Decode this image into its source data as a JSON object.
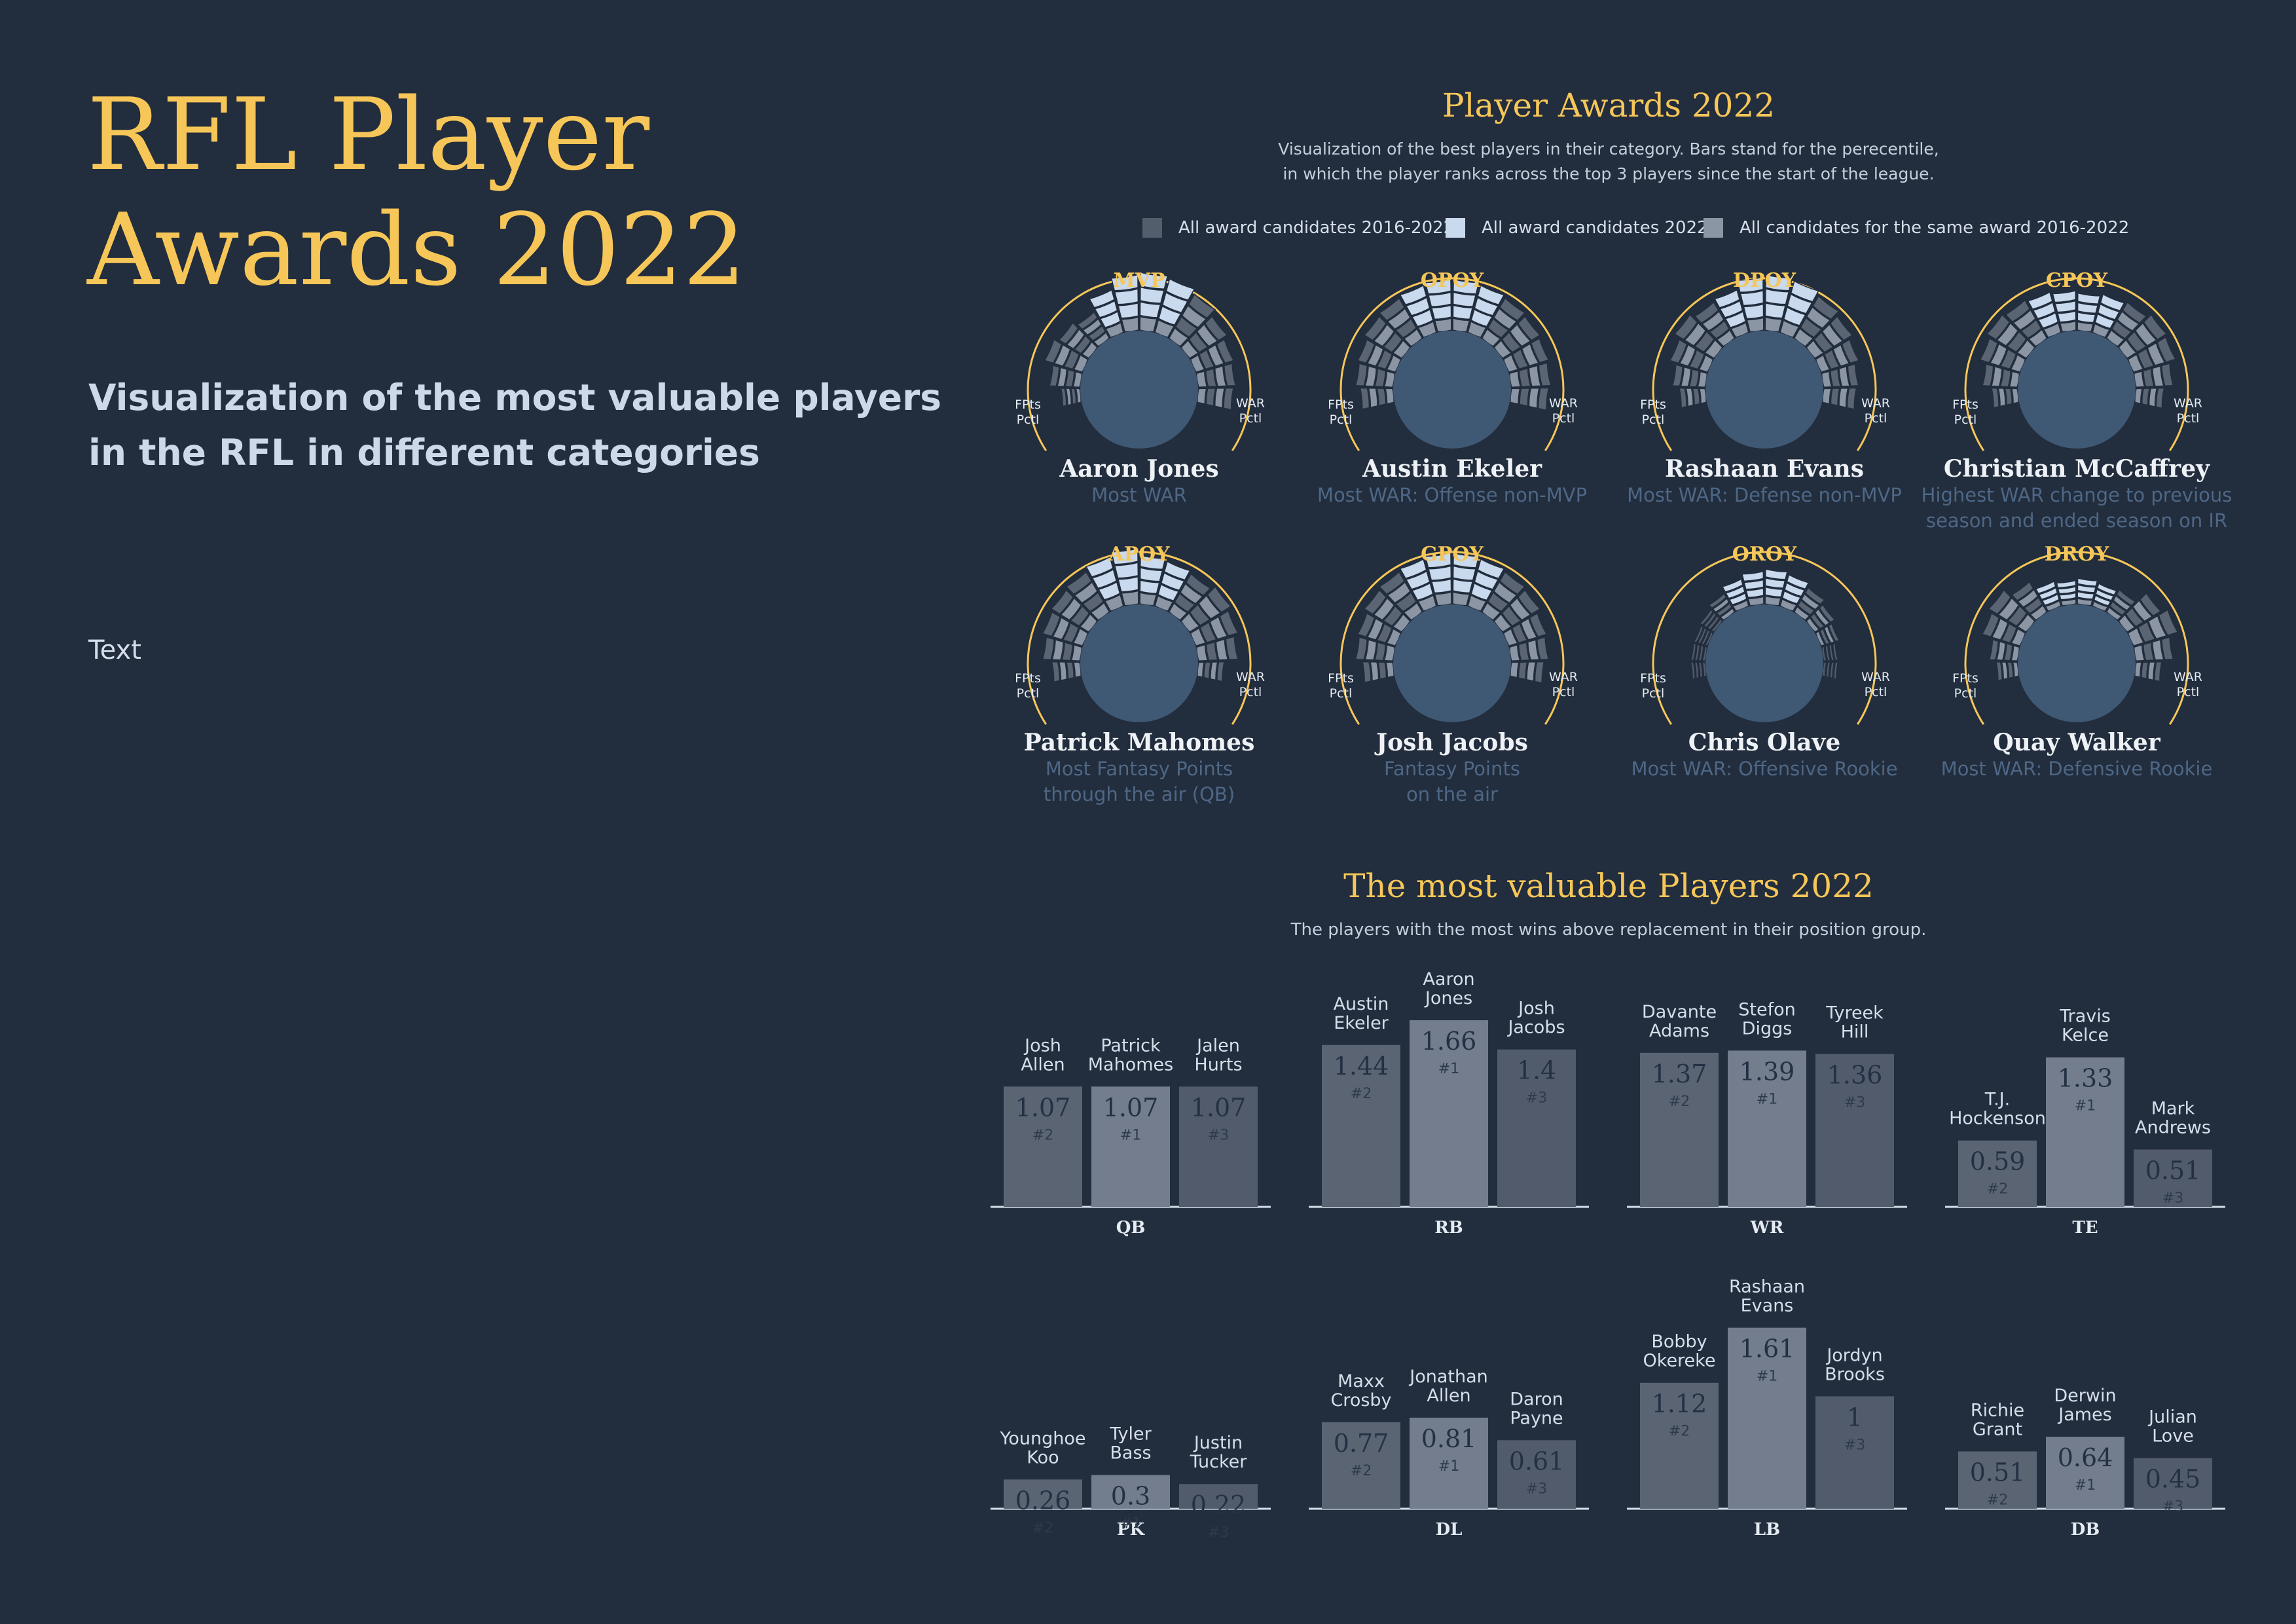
{
  "page": {
    "title": "RFL Player Awards 2022",
    "subtitle": "Visualization of the most valuable players in the RFL in different categories",
    "text": "Text"
  },
  "colors": {
    "background": "#222d3d",
    "gold": "#f6c758",
    "circle": "#3f5874",
    "bar_dark": "#5a6473",
    "bar_light": "#737d8d",
    "bar_dim": "#525b6b",
    "legend_dark": "#535d6c",
    "legend_light": "#c9d9ee",
    "legend_mid": "#8c95a3",
    "muted_text": "#4e6785"
  },
  "awards_section": {
    "title": "Player Awards 2022",
    "description": [
      "Visualization of the best players in their category. Bars stand for the perecentile,",
      "in which the player ranks across the top 3 players since the start of the league."
    ],
    "legend": [
      {
        "label": "All award candidates 2016-2022",
        "color": "#535d6c"
      },
      {
        "label": "All award candidates 2022",
        "color": "#c9d9ee"
      },
      {
        "label": "All candidates for the same award 2016-2022",
        "color": "#8c95a3"
      }
    ],
    "axis_left": [
      "FPts",
      "Pctl"
    ],
    "axis_right": [
      "WAR",
      "Pctl"
    ]
  },
  "chart_data": [
    {
      "type": "radial-bar",
      "title": "Player Awards 2022",
      "awards": [
        {
          "award": "MVP",
          "player": "Aaron Jones",
          "description": [
            "Most WAR"
          ],
          "percentiles": [
            0.15,
            0.4,
            0.6,
            0.5,
            0.4,
            0.7,
            0.95,
            1.0,
            0.95,
            0.85,
            0.7,
            0.6,
            0.55,
            0.5
          ]
        },
        {
          "award": "OPOY",
          "player": "Austin Ekeler",
          "description": [
            "Most WAR: Offense non-MVP"
          ],
          "percentiles": [
            0.45,
            0.55,
            0.6,
            0.7,
            0.75,
            0.8,
            0.85,
            0.85,
            0.8,
            0.75,
            0.7,
            0.65,
            0.6,
            0.55
          ]
        },
        {
          "award": "DPOY",
          "player": "Rashaan Evans",
          "description": [
            "Most WAR: Defense non-MVP"
          ],
          "percentiles": [
            0.3,
            0.45,
            0.6,
            0.75,
            0.65,
            0.7,
            0.9,
            0.95,
            0.9,
            0.8,
            0.7,
            0.6,
            0.5,
            0.45
          ]
        },
        {
          "award": "CPOY",
          "player": "Christian McCaffrey",
          "description": [
            "Highest WAR change to previous",
            "season and ended season on IR"
          ],
          "percentiles": [
            0.3,
            0.5,
            0.65,
            0.75,
            0.7,
            0.65,
            0.6,
            0.55,
            0.6,
            0.65,
            0.75,
            0.7,
            0.55,
            0.35
          ]
        },
        {
          "award": "APOY",
          "player": "Patrick Mahomes",
          "description": [
            "Most Fantasy Points",
            "through the air (QB)"
          ],
          "percentiles": [
            0.35,
            0.55,
            0.65,
            0.7,
            0.75,
            0.85,
            0.95,
            0.8,
            0.75,
            0.7,
            0.8,
            0.7,
            0.6,
            0.3
          ]
        },
        {
          "award": "GPOY",
          "player": "Josh Jacobs",
          "description": [
            "Fantasy Points",
            "on the air"
          ],
          "percentiles": [
            0.4,
            0.55,
            0.6,
            0.7,
            0.75,
            0.8,
            0.85,
            0.85,
            0.8,
            0.75,
            0.7,
            0.6,
            0.55,
            0.45
          ]
        },
        {
          "award": "OROY",
          "player": "Chris Olave",
          "description": [
            "Most WAR: Offensive Rookie"
          ],
          "percentiles": [
            0.05,
            0.05,
            0.05,
            0.1,
            0.2,
            0.35,
            0.45,
            0.5,
            0.45,
            0.35,
            0.25,
            0.15,
            0.05,
            0.05
          ]
        },
        {
          "award": "DROY",
          "player": "Quay Walker",
          "description": [
            "Most WAR: Defensive Rookie"
          ],
          "percentiles": [
            0.2,
            0.35,
            0.6,
            0.7,
            0.5,
            0.3,
            0.25,
            0.3,
            0.25,
            0.3,
            0.6,
            0.75,
            0.55,
            0.3
          ]
        }
      ]
    },
    {
      "type": "bar",
      "title": "The most valuable Players 2022",
      "subtitle": "The players with the most wins above replacement in their position group.",
      "ylim": [
        0,
        1.66
      ],
      "groups": [
        {
          "position": "QB",
          "players": [
            {
              "name": [
                "Josh",
                "Allen"
              ],
              "value": "1.07",
              "rank": "#2"
            },
            {
              "name": [
                "Patrick",
                "Mahomes"
              ],
              "value": "1.07",
              "rank": "#1"
            },
            {
              "name": [
                "Jalen",
                "Hurts"
              ],
              "value": "1.07",
              "rank": "#3"
            }
          ]
        },
        {
          "position": "RB",
          "players": [
            {
              "name": [
                "Austin",
                "Ekeler"
              ],
              "value": "1.44",
              "rank": "#2"
            },
            {
              "name": [
                "Aaron",
                "Jones"
              ],
              "value": "1.66",
              "rank": "#1"
            },
            {
              "name": [
                "Josh",
                "Jacobs"
              ],
              "value": "1.4",
              "rank": "#3"
            }
          ]
        },
        {
          "position": "WR",
          "players": [
            {
              "name": [
                "Davante",
                "Adams"
              ],
              "value": "1.37",
              "rank": "#2"
            },
            {
              "name": [
                "Stefon",
                "Diggs"
              ],
              "value": "1.39",
              "rank": "#1"
            },
            {
              "name": [
                "Tyreek",
                "Hill"
              ],
              "value": "1.36",
              "rank": "#3"
            }
          ]
        },
        {
          "position": "TE",
          "players": [
            {
              "name": [
                "T.J.",
                "Hockenson"
              ],
              "value": "0.59",
              "rank": "#2"
            },
            {
              "name": [
                "Travis",
                "Kelce"
              ],
              "value": "1.33",
              "rank": "#1"
            },
            {
              "name": [
                "Mark",
                "Andrews"
              ],
              "value": "0.51",
              "rank": "#3"
            }
          ]
        },
        {
          "position": "PK",
          "players": [
            {
              "name": [
                "Younghoe",
                "Koo"
              ],
              "value": "0.26",
              "rank": "#2"
            },
            {
              "name": [
                "Tyler",
                "Bass"
              ],
              "value": "0.3",
              "rank": "#1"
            },
            {
              "name": [
                "Justin",
                "Tucker"
              ],
              "value": "0.22",
              "rank": "#3"
            }
          ]
        },
        {
          "position": "DL",
          "players": [
            {
              "name": [
                "Maxx",
                "Crosby"
              ],
              "value": "0.77",
              "rank": "#2"
            },
            {
              "name": [
                "Jonathan",
                "Allen"
              ],
              "value": "0.81",
              "rank": "#1"
            },
            {
              "name": [
                "Daron",
                "Payne"
              ],
              "value": "0.61",
              "rank": "#3"
            }
          ]
        },
        {
          "position": "LB",
          "players": [
            {
              "name": [
                "Bobby",
                "Okereke"
              ],
              "value": "1.12",
              "rank": "#2"
            },
            {
              "name": [
                "Rashaan",
                "Evans"
              ],
              "value": "1.61",
              "rank": "#1"
            },
            {
              "name": [
                "Jordyn",
                "Brooks"
              ],
              "value": "1",
              "rank": "#3"
            }
          ]
        },
        {
          "position": "DB",
          "players": [
            {
              "name": [
                "Richie",
                "Grant"
              ],
              "value": "0.51",
              "rank": "#2"
            },
            {
              "name": [
                "Derwin",
                "James"
              ],
              "value": "0.64",
              "rank": "#1"
            },
            {
              "name": [
                "Julian",
                "Love"
              ],
              "value": "0.45",
              "rank": "#3"
            }
          ]
        }
      ]
    }
  ]
}
